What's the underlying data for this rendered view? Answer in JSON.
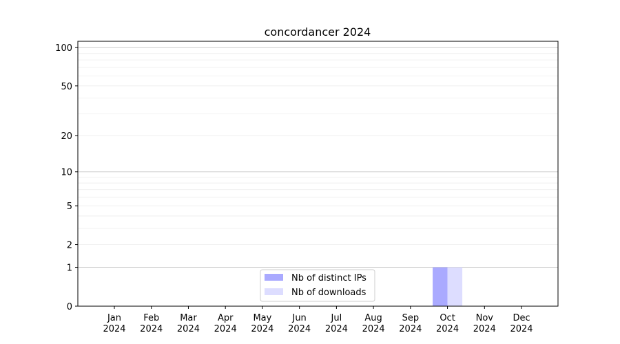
{
  "chart_data": {
    "type": "bar",
    "title": "concordancer 2024",
    "xlabel": "",
    "ylabel": "",
    "categories": [
      "Jan\n2024",
      "Feb\n2024",
      "Mar\n2024",
      "Apr\n2024",
      "May\n2024",
      "Jun\n2024",
      "Jul\n2024",
      "Aug\n2024",
      "Sep\n2024",
      "Oct\n2024",
      "Nov\n2024",
      "Dec\n2024"
    ],
    "series": [
      {
        "name": "Nb of distinct IPs",
        "color": "#aaaaff",
        "values": [
          0,
          0,
          0,
          0,
          0,
          0,
          0,
          0,
          0,
          1,
          0,
          0
        ]
      },
      {
        "name": "Nb of downloads",
        "color": "#ddddff",
        "values": [
          0,
          0,
          0,
          0,
          0,
          0,
          0,
          0,
          0,
          1,
          0,
          0
        ]
      }
    ],
    "y_scale": "log10(y+1)",
    "ylim": [
      0,
      112
    ],
    "y_ticks": [
      0,
      1,
      2,
      5,
      10,
      20,
      50,
      100
    ],
    "y_tick_labels": [
      "0",
      "1",
      "2",
      "5",
      "10",
      "20",
      "50",
      "100"
    ],
    "grid": true,
    "legend": "bottom-center"
  }
}
